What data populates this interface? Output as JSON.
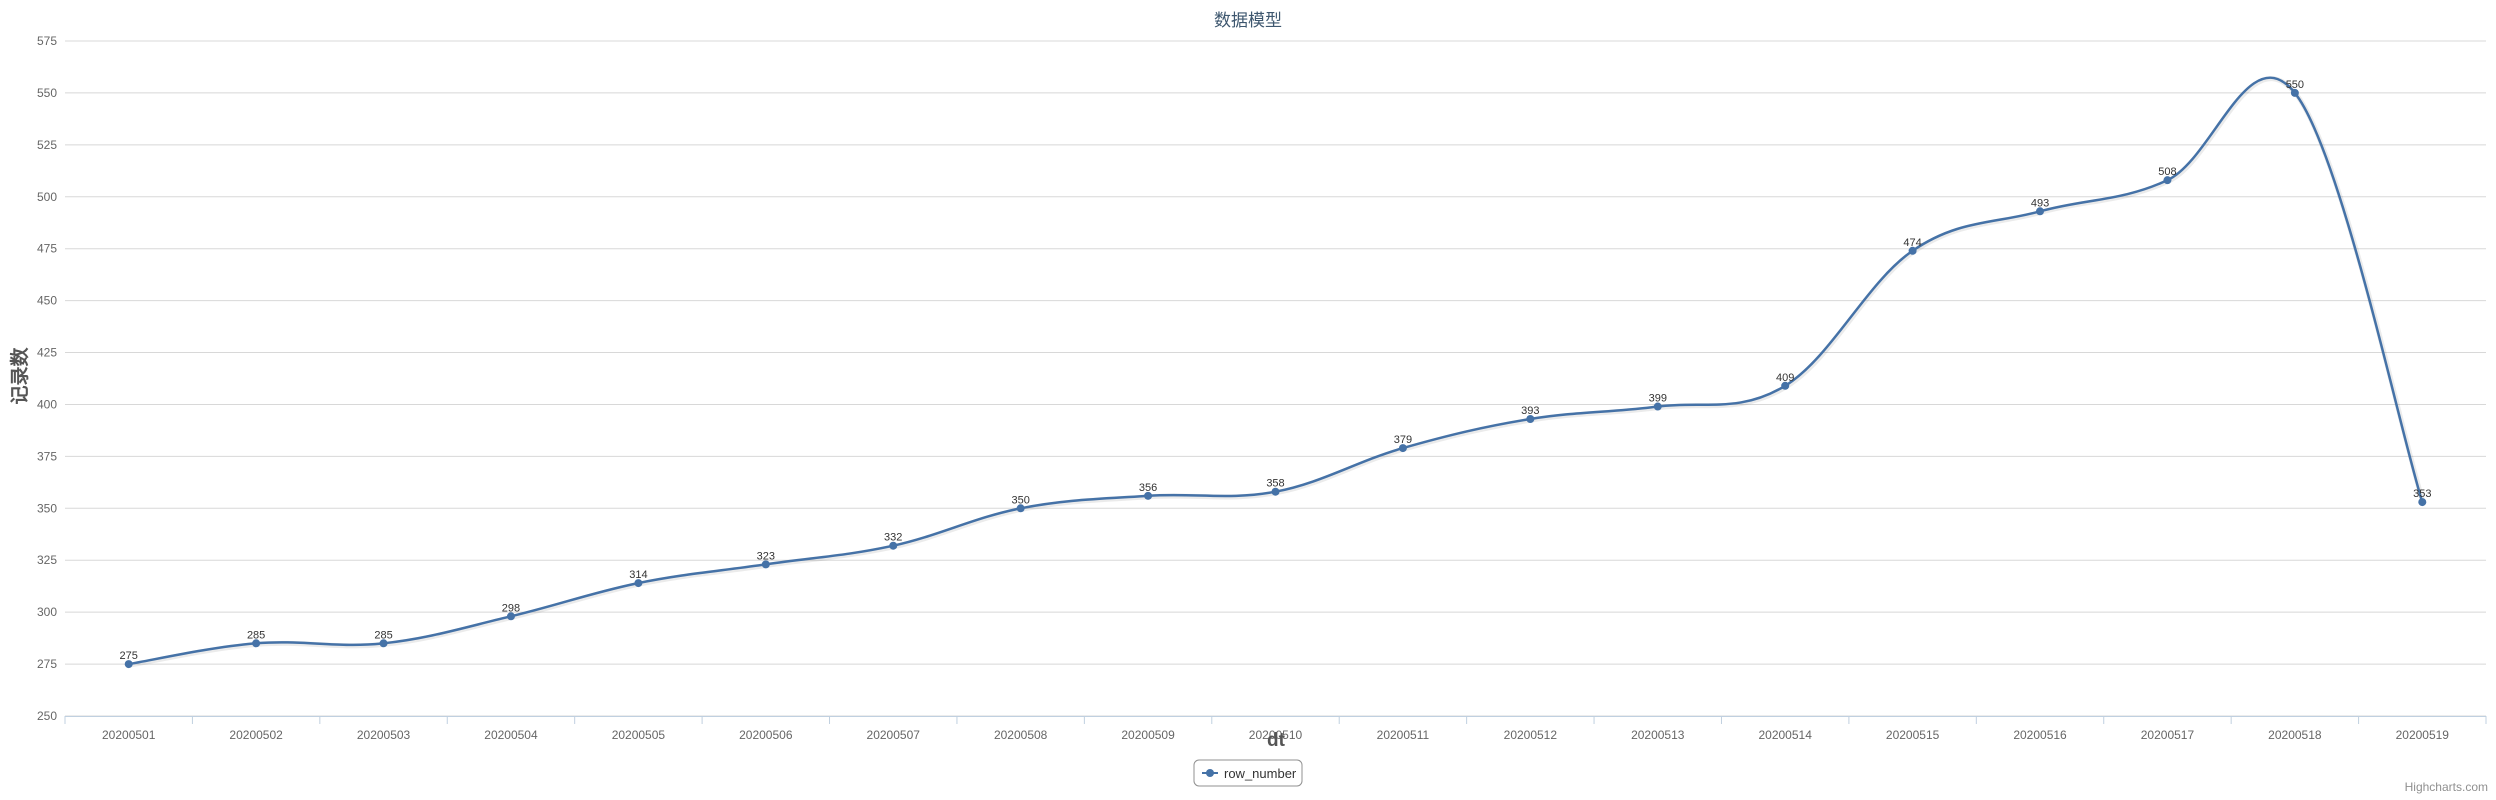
{
  "chart_data": {
    "type": "line",
    "title": "数据模型",
    "xlabel": "dt",
    "ylabel": "记录数",
    "categories": [
      "20200501",
      "20200502",
      "20200503",
      "20200504",
      "20200505",
      "20200506",
      "20200507",
      "20200508",
      "20200509",
      "20200510",
      "20200511",
      "20200512",
      "20200513",
      "20200514",
      "20200515",
      "20200516",
      "20200517",
      "20200518",
      "20200519"
    ],
    "series": [
      {
        "name": "row_number",
        "values": [
          275,
          285,
          285,
          298,
          314,
          323,
          332,
          350,
          356,
          358,
          379,
          393,
          399,
          409,
          474,
          493,
          508,
          550,
          353
        ]
      }
    ],
    "yticks": [
      250,
      275,
      300,
      325,
      350,
      375,
      400,
      425,
      450,
      475,
      500,
      525,
      550,
      575
    ],
    "ylim": [
      250,
      575
    ],
    "grid": true,
    "smooth": true,
    "data_labels": true,
    "legend_position": "bottom-center",
    "colors": {
      "series": "#4572A7",
      "grid": "#d8d8d8",
      "axis_text": "#666666",
      "title": "#3E576F"
    }
  },
  "credits": "Highcharts.com"
}
